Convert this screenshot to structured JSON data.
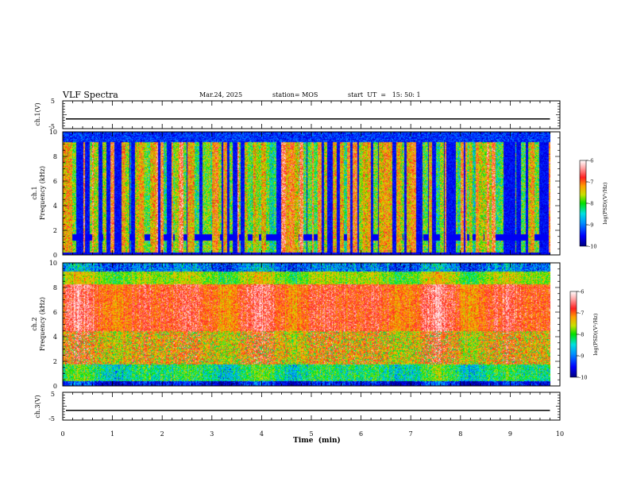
{
  "header": {
    "title": "VLF Spectra",
    "date": "Mar.24, 2025",
    "station": "station= MOS",
    "start_ut": "start  UT  =   15: 50: 1"
  },
  "chart_data": [
    {
      "type": "line",
      "panel": "ch1-waveform",
      "ylabel": "ch.1(V)",
      "ylim": [
        -5,
        5
      ],
      "yticks": [
        "5",
        "-5"
      ],
      "series": [
        {
          "x": [
            0,
            9.8
          ],
          "values": [
            -1.5,
            -1.5
          ]
        }
      ]
    },
    {
      "type": "heatmap",
      "panel": "ch1-spectrogram",
      "ylabel": "ch.1\nFrequency (kHz)",
      "ylim": [
        0,
        10
      ],
      "yticks": [
        "0",
        "2",
        "4",
        "6",
        "8",
        "10"
      ],
      "data_xmax": 9.8,
      "colorbar": {
        "label": "log(PSD)(V²/Hz)",
        "range": [
          -10,
          -6
        ],
        "ticks": [
          "-6",
          "-7",
          "-8",
          "-9",
          "-10"
        ]
      }
    },
    {
      "type": "heatmap",
      "panel": "ch2-spectrogram",
      "ylabel": "ch.2\nFrequency (kHz)",
      "ylim": [
        0,
        10
      ],
      "yticks": [
        "0",
        "2",
        "4",
        "6",
        "8",
        "10"
      ],
      "data_xmax": 9.8,
      "colorbar": {
        "label": "log(PSD)(V²/Hz)",
        "range": [
          -10,
          -6
        ],
        "ticks": [
          "-6",
          "-7",
          "-8",
          "-9",
          "-10"
        ]
      }
    },
    {
      "type": "line",
      "panel": "ch3-waveform",
      "ylabel": "ch.3(V)",
      "ylim": [
        -5,
        5
      ],
      "yticks": [
        "5",
        "-5"
      ],
      "series": [
        {
          "x": [
            0,
            9.8
          ],
          "values": [
            -1.5,
            -1.5
          ]
        }
      ]
    }
  ],
  "x_axis": {
    "label": "Time  (min)",
    "range": [
      0,
      10
    ],
    "ticks": [
      "0",
      "1",
      "2",
      "3",
      "4",
      "5",
      "6",
      "7",
      "8",
      "9",
      "10"
    ]
  },
  "colors": {
    "colormap": [
      "#00008a",
      "#0000ff",
      "#0080ff",
      "#00e0e0",
      "#00e000",
      "#d0e000",
      "#ffa000",
      "#ff2020",
      "#ffc0c0",
      "#ffffff"
    ]
  }
}
